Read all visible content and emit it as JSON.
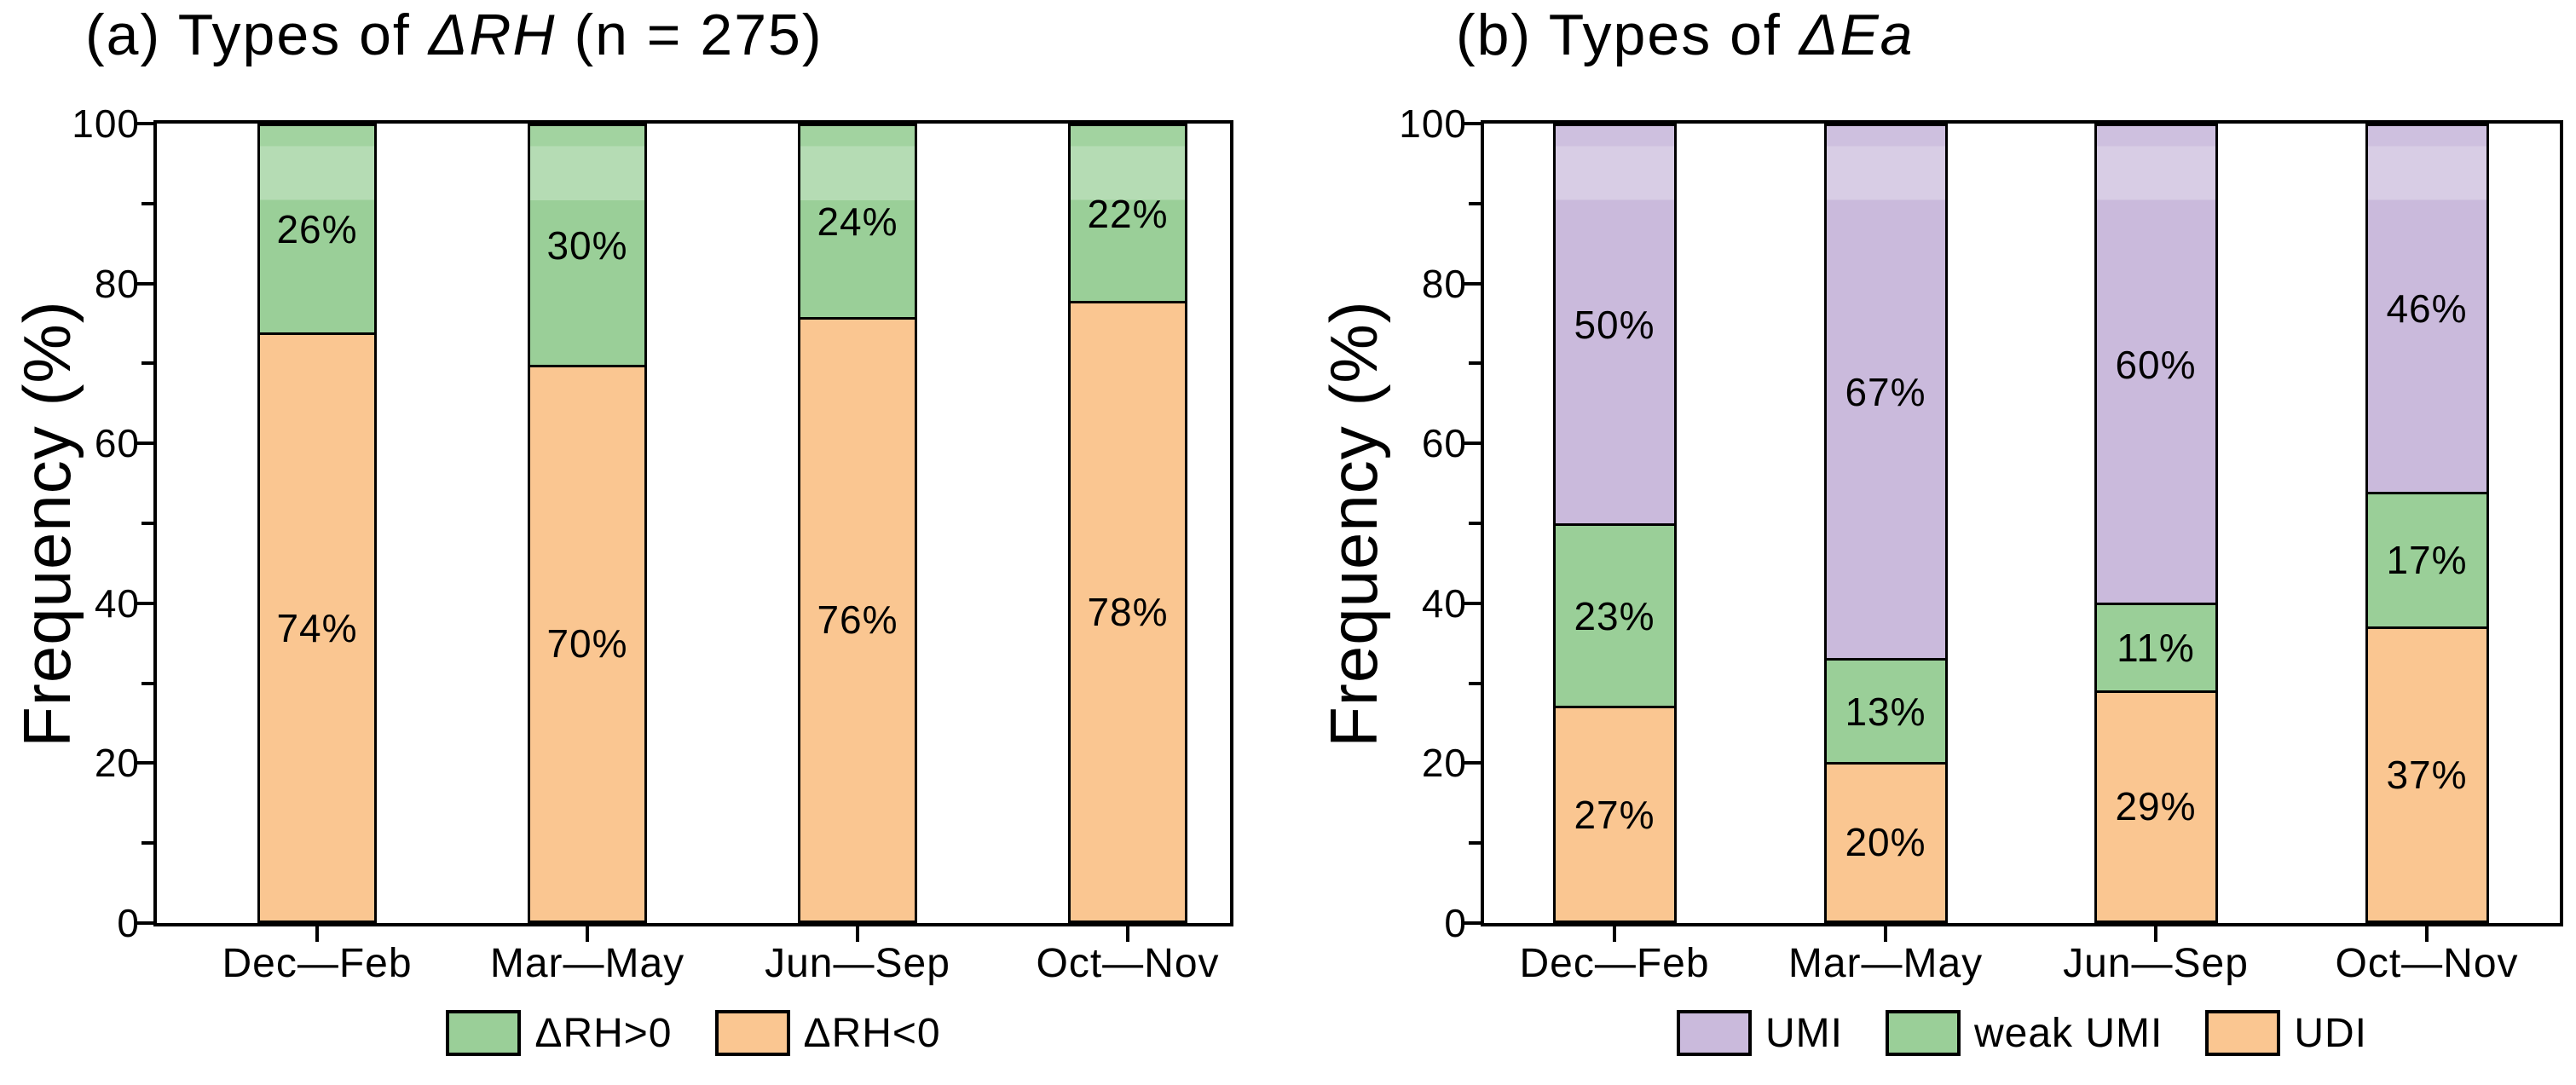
{
  "chart_data": [
    {
      "type": "bar",
      "stacked": true,
      "panel": "a",
      "title": {
        "prefix": "(a) Types of ",
        "italic": "ΔRH",
        "suffix": " (n = 275)"
      },
      "title_plain": "(a) Types of ΔRH (n = 275)",
      "ylabel": "Frequency (%)",
      "ylim": [
        0,
        100
      ],
      "yticks": [
        0,
        20,
        40,
        60,
        80,
        100
      ],
      "yticks_minor": [
        10,
        30,
        50,
        70,
        90
      ],
      "grid": false,
      "line_color": "#000000",
      "categories": [
        "Dec—Feb",
        "Mar—May",
        "Jun—Sep",
        "Oct—Nov"
      ],
      "series": [
        {
          "name": "ΔRH<0",
          "color": "#FAC691",
          "values": [
            74,
            70,
            76,
            78
          ]
        },
        {
          "name": "ΔRH>0",
          "color": "#9ACF98",
          "values": [
            26,
            30,
            24,
            22
          ]
        }
      ],
      "value_suffix": "%",
      "legend": {
        "position": "bottom",
        "items": [
          "ΔRH>0",
          "ΔRH<0"
        ]
      }
    },
    {
      "type": "bar",
      "stacked": true,
      "panel": "b",
      "title": {
        "prefix": "(b) Types of ",
        "italic": "ΔEa",
        "suffix": ""
      },
      "title_plain": "(b) Types of ΔEa",
      "ylabel": "Frequency (%)",
      "ylim": [
        0,
        100
      ],
      "yticks": [
        0,
        20,
        40,
        60,
        80,
        100
      ],
      "yticks_minor": [
        10,
        30,
        50,
        70,
        90
      ],
      "grid": false,
      "line_color": "#000000",
      "categories": [
        "Dec—Feb",
        "Mar—May",
        "Jun—Sep",
        "Oct—Nov"
      ],
      "series": [
        {
          "name": "UDI",
          "color": "#FAC691",
          "values": [
            27,
            20,
            29,
            37
          ]
        },
        {
          "name": "weak UMI",
          "color": "#9ACF98",
          "values": [
            23,
            13,
            11,
            17
          ]
        },
        {
          "name": "UMI",
          "color": "#CABADC",
          "values": [
            50,
            67,
            60,
            46
          ]
        }
      ],
      "value_suffix": "%",
      "legend": {
        "position": "bottom",
        "items": [
          "UMI",
          "weak UMI",
          "UDI"
        ]
      }
    }
  ]
}
